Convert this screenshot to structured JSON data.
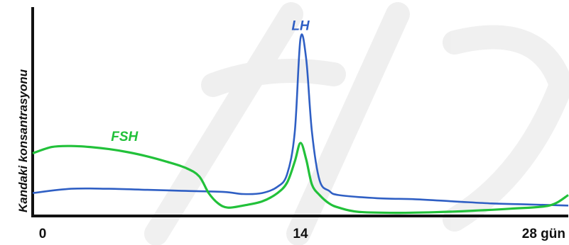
{
  "chart_data": {
    "type": "line",
    "title": "",
    "xlabel": "",
    "ylabel": "Kandaki konsantrasyonu",
    "xlim": [
      0,
      28
    ],
    "ylim": [
      0,
      100
    ],
    "x_ticks": [
      "0",
      "14",
      "28 gün"
    ],
    "x_tick_values": [
      0,
      14,
      28
    ],
    "grid": false,
    "legend": "none (series labeled directly on curves)",
    "series": [
      {
        "name": "LH",
        "color": "#2f5fc4",
        "points": [
          [
            0,
            11
          ],
          [
            2,
            13
          ],
          [
            4,
            13
          ],
          [
            6,
            12.5
          ],
          [
            8,
            12
          ],
          [
            10,
            11.5
          ],
          [
            11,
            10.5
          ],
          [
            12,
            11
          ],
          [
            12.8,
            14
          ],
          [
            13.3,
            20
          ],
          [
            13.7,
            40
          ],
          [
            14,
            85
          ],
          [
            14.3,
            75
          ],
          [
            14.6,
            40
          ],
          [
            15,
            17
          ],
          [
            15.5,
            12
          ],
          [
            16,
            10
          ],
          [
            18,
            8.5
          ],
          [
            20,
            8
          ],
          [
            22,
            7
          ],
          [
            24,
            6
          ],
          [
            26,
            5.5
          ],
          [
            28,
            5
          ]
        ]
      },
      {
        "name": "FSH",
        "color": "#22c13a",
        "points": [
          [
            0,
            30
          ],
          [
            1,
            33
          ],
          [
            2,
            33.5
          ],
          [
            3,
            33
          ],
          [
            4,
            32
          ],
          [
            5,
            30.5
          ],
          [
            6,
            28.5
          ],
          [
            7,
            26
          ],
          [
            8,
            23
          ],
          [
            8.7,
            19
          ],
          [
            9.2,
            11
          ],
          [
            9.7,
            6
          ],
          [
            10.2,
            4
          ],
          [
            11,
            5
          ],
          [
            12,
            7
          ],
          [
            12.8,
            11
          ],
          [
            13.3,
            16
          ],
          [
            13.7,
            26
          ],
          [
            14,
            35
          ],
          [
            14.3,
            27
          ],
          [
            14.6,
            15
          ],
          [
            15,
            10
          ],
          [
            15.5,
            6
          ],
          [
            16,
            4
          ],
          [
            17,
            2
          ],
          [
            19,
            1.5
          ],
          [
            21,
            1.8
          ],
          [
            23,
            2.5
          ],
          [
            25,
            3.5
          ],
          [
            27,
            5
          ],
          [
            28,
            10
          ]
        ]
      }
    ]
  }
}
